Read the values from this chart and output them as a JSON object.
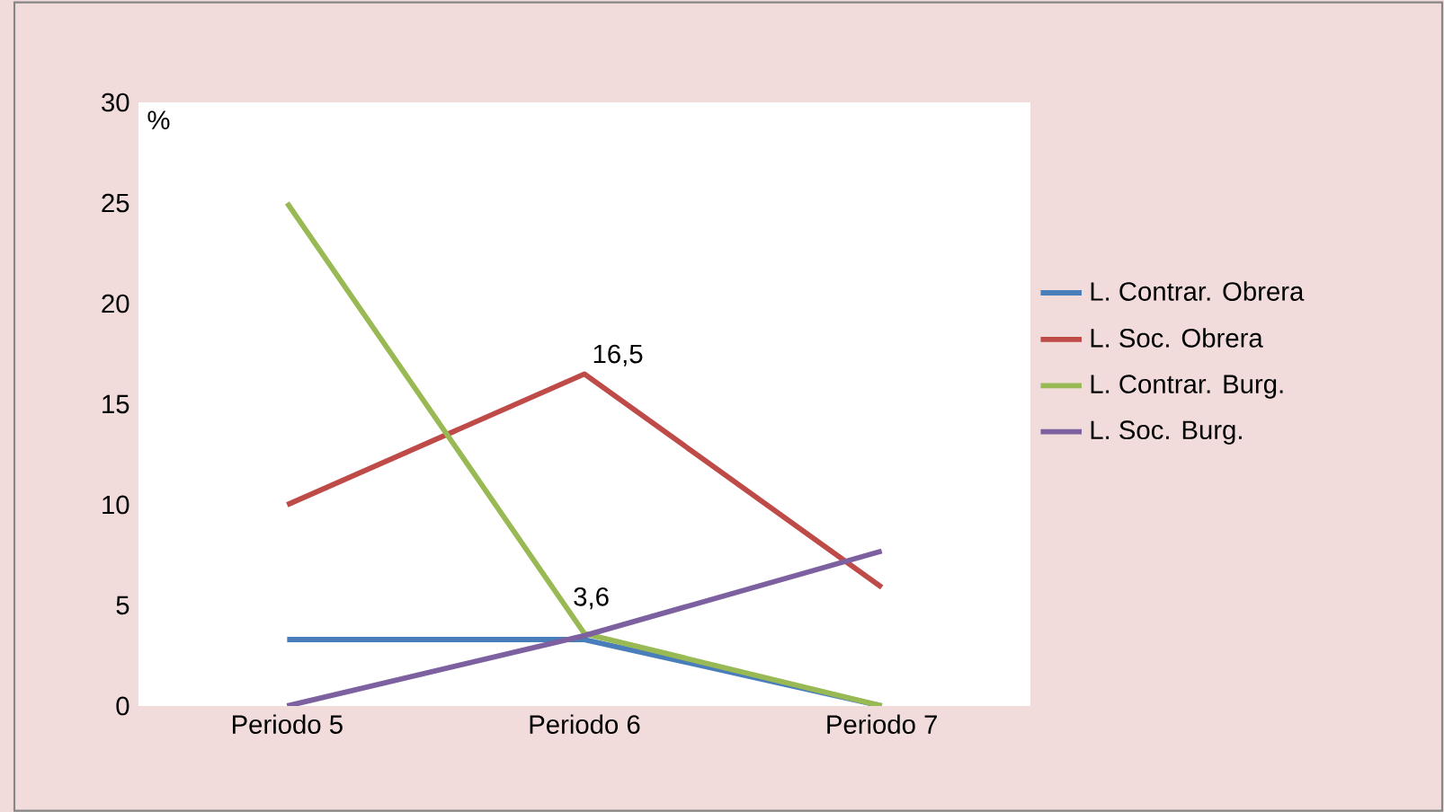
{
  "chart_data": {
    "type": "line",
    "ylabel": "%",
    "categories": [
      "Periodo 5",
      "Periodo 6",
      "Periodo 7"
    ],
    "ylim": [
      0,
      30
    ],
    "yticks": [
      0,
      5,
      10,
      15,
      20,
      25,
      30
    ],
    "legend": "right",
    "grid": false,
    "series": [
      {
        "name": "L. Contrar. Obrera",
        "color": "#4a7ebb",
        "values": [
          3.3,
          3.3,
          0
        ]
      },
      {
        "name": "L. Soc. Obrera",
        "color": "#be4b48",
        "values": [
          10,
          16.5,
          5.9
        ],
        "value_labels": [
          null,
          "16,5",
          null
        ]
      },
      {
        "name": "L. Contrar. Burg.",
        "color": "#98b954",
        "values": [
          25,
          3.6,
          0
        ],
        "value_labels": [
          null,
          "3,6",
          null
        ]
      },
      {
        "name": "L. Soc. Burg.",
        "color": "#7d60a0",
        "values": [
          0,
          3.5,
          7.7
        ]
      }
    ]
  }
}
